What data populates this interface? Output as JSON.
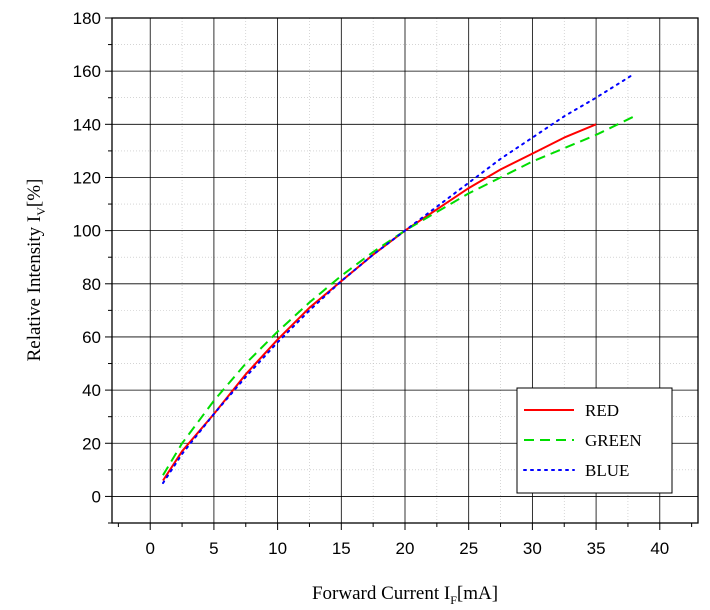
{
  "chart_data": {
    "type": "line",
    "title": "",
    "xlabel": {
      "main": "Forward Current I",
      "sub": "F",
      "tail": "[mA]"
    },
    "ylabel": {
      "main": "Relative Intensity I",
      "sub": "V",
      "tail": "[%]"
    },
    "xlim": [
      -3,
      43
    ],
    "ylim": [
      -10,
      180
    ],
    "x_ticks": [
      "0",
      "5",
      "10",
      "15",
      "20",
      "25",
      "30",
      "35",
      "40"
    ],
    "y_ticks": [
      "0",
      "20",
      "40",
      "60",
      "80",
      "100",
      "120",
      "140",
      "160",
      "180"
    ],
    "grid": true,
    "legend_position": "bottom-right",
    "series": [
      {
        "name": "RED",
        "color": "#ff0000",
        "dash": "solid",
        "x": [
          1,
          2.5,
          5,
          7.5,
          10,
          12.5,
          15,
          17.5,
          20,
          22.5,
          25,
          27.5,
          30,
          32.5,
          35
        ],
        "y": [
          6,
          17,
          31,
          46,
          59,
          71,
          81,
          91,
          100,
          108,
          116,
          123,
          129,
          135,
          140
        ]
      },
      {
        "name": "GREEN",
        "color": "#00dd00",
        "dash": "dashed",
        "x": [
          1,
          2.5,
          5,
          7.5,
          10,
          12.5,
          15,
          17.5,
          20,
          22.5,
          25,
          27.5,
          30,
          32.5,
          35,
          38
        ],
        "y": [
          8,
          20,
          36,
          50,
          62,
          73,
          83,
          92,
          100,
          107,
          114,
          120,
          126,
          131,
          136,
          143
        ]
      },
      {
        "name": "BLUE",
        "color": "#0000ff",
        "dash": "dotted",
        "x": [
          1,
          2.5,
          5,
          7.5,
          10,
          12.5,
          15,
          17.5,
          20,
          22.5,
          25,
          27.5,
          30,
          32.5,
          35,
          38
        ],
        "y": [
          5,
          16,
          31,
          45,
          58,
          70,
          81,
          91,
          100,
          109,
          118,
          127,
          135,
          143,
          150,
          159
        ]
      }
    ]
  }
}
